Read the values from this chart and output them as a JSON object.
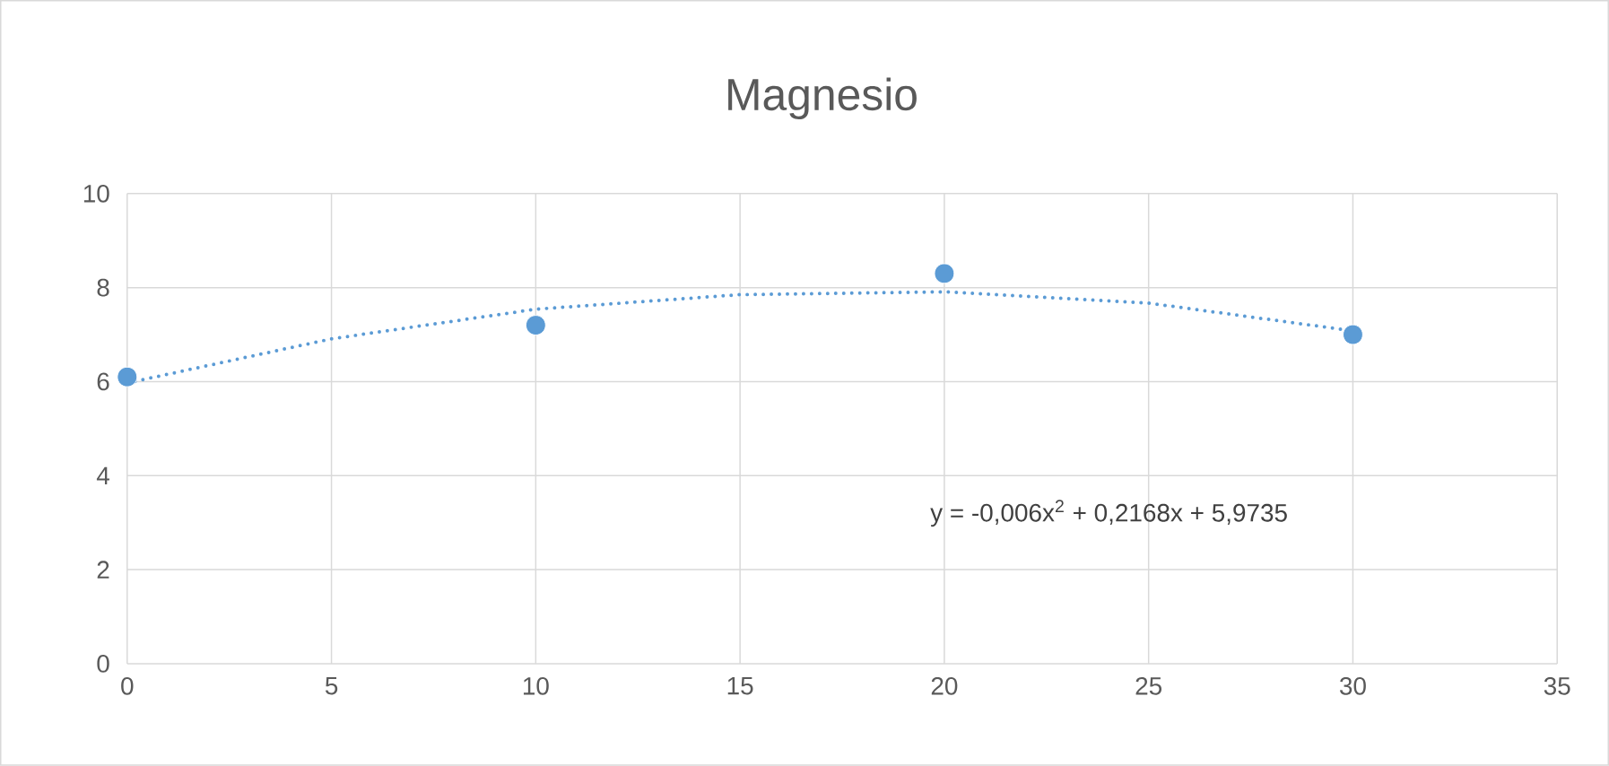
{
  "chart_data": {
    "type": "scatter",
    "title": "Magnesio",
    "series": [
      {
        "color": "#5b9bd5",
        "marker": "circle",
        "x": [
          0,
          10,
          20,
          30
        ],
        "values": [
          6.1,
          7.2,
          8.3,
          7.0
        ]
      },
      {
        "type": "line",
        "color": "#5b9bd5",
        "marker": "none",
        "line_style": "dotted",
        "x": [
          0,
          5,
          10,
          15,
          20,
          25,
          30
        ],
        "values": [
          5.97,
          6.91,
          7.54,
          7.85,
          7.91,
          7.67,
          7.08
        ]
      }
    ],
    "annotations": [
      "y = -0,006x$^{2}$ + 0,2168x + 5,9735"
    ],
    "xlim": [
      0,
      35
    ],
    "xticks": [
      0,
      5,
      10,
      15,
      20,
      25,
      30,
      35
    ],
    "ylim": [
      0,
      10
    ],
    "yticks": [
      0,
      2,
      4,
      6,
      8,
      10
    ],
    "grid": true
  }
}
